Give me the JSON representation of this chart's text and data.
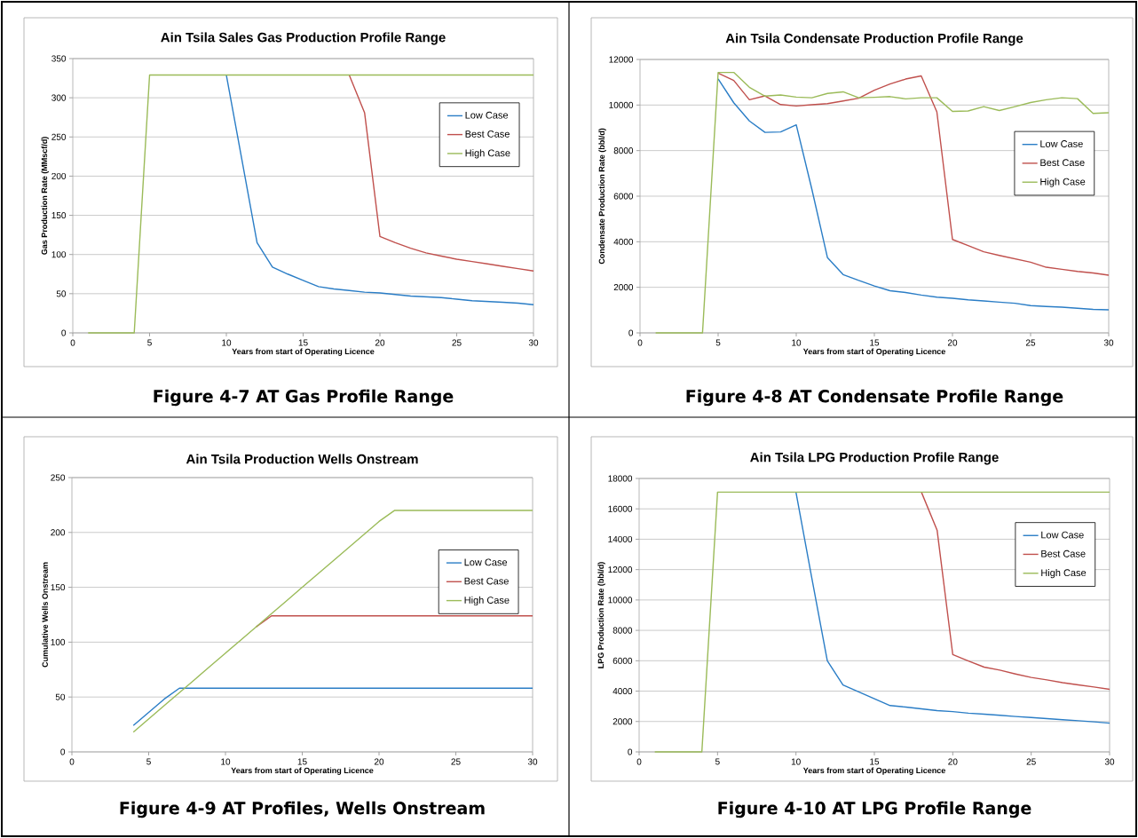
{
  "chart_data": [
    {
      "type": "line",
      "title": "Ain Tsila Sales Gas Production Profile Range",
      "xlabel": "Years from start of Operating Licence",
      "ylabel": "Gas Production Rate (MMscf/d)",
      "annotations": [
        "Figure 4-7 AT Gas Profile Range"
      ],
      "xlim": [
        0,
        30
      ],
      "ylim": [
        0,
        350
      ],
      "xticks": [
        0,
        5,
        10,
        15,
        20,
        25,
        30
      ],
      "yticks": [
        0,
        50,
        100,
        150,
        200,
        250,
        300,
        350
      ],
      "grid": "y",
      "legend": "top right",
      "x": [
        1,
        2,
        3,
        4,
        5,
        6,
        7,
        8,
        9,
        10,
        11,
        12,
        13,
        14,
        15,
        16,
        17,
        18,
        19,
        20,
        21,
        22,
        23,
        24,
        25,
        26,
        27,
        28,
        29,
        30
      ],
      "series": [
        {
          "name": "Low Case",
          "color": "#2a7dc6",
          "values": [
            null,
            null,
            null,
            null,
            null,
            null,
            null,
            null,
            null,
            329,
            222,
            115,
            84,
            75,
            67,
            59,
            56,
            54,
            52,
            51,
            49,
            47,
            46,
            45,
            43,
            41,
            40,
            39,
            38,
            36
          ]
        },
        {
          "name": "Best Case",
          "color": "#c0504d",
          "values": [
            null,
            null,
            null,
            null,
            null,
            null,
            null,
            null,
            null,
            null,
            null,
            null,
            null,
            null,
            null,
            null,
            null,
            329,
            281,
            123,
            115,
            108,
            102,
            98,
            94,
            91,
            88,
            85,
            82,
            79
          ]
        },
        {
          "name": "High Case",
          "color": "#9bbb59",
          "values": [
            0,
            0,
            0,
            0,
            329,
            329,
            329,
            329,
            329,
            329,
            329,
            329,
            329,
            329,
            329,
            329,
            329,
            329,
            329,
            329,
            329,
            329,
            329,
            329,
            329,
            329,
            329,
            329,
            329,
            329
          ]
        }
      ]
    },
    {
      "type": "line",
      "title": "Ain Tsila Condensate Production Profile Range",
      "xlabel": "Years from start of Operating Licence",
      "ylabel": "Condensate Production Rate (bbl/d)",
      "annotations": [
        "Figure 4-8 AT Condensate Profile Range"
      ],
      "xlim": [
        0,
        30
      ],
      "ylim": [
        0,
        12000
      ],
      "xticks": [
        0,
        5,
        10,
        15,
        20,
        25,
        30
      ],
      "yticks": [
        0,
        2000,
        4000,
        6000,
        8000,
        10000,
        12000
      ],
      "grid": "y",
      "legend": "right",
      "x": [
        1,
        2,
        3,
        4,
        5,
        6,
        7,
        8,
        9,
        10,
        11,
        12,
        13,
        14,
        15,
        16,
        17,
        18,
        19,
        20,
        21,
        22,
        23,
        24,
        25,
        26,
        27,
        28,
        29,
        30
      ],
      "series": [
        {
          "name": "Low Case",
          "color": "#2a7dc6",
          "values": [
            null,
            null,
            null,
            null,
            11150,
            10100,
            9300,
            8800,
            8820,
            9130,
            6300,
            3300,
            2560,
            2300,
            2060,
            1850,
            1770,
            1660,
            1570,
            1520,
            1450,
            1400,
            1350,
            1300,
            1200,
            1160,
            1130,
            1080,
            1030,
            1010
          ]
        },
        {
          "name": "Best Case",
          "color": "#c0504d",
          "values": [
            null,
            null,
            null,
            null,
            11400,
            11080,
            10230,
            10400,
            10020,
            9960,
            10010,
            10060,
            10180,
            10300,
            10650,
            10920,
            11140,
            11280,
            9700,
            4100,
            3830,
            3560,
            3400,
            3250,
            3100,
            2880,
            2790,
            2700,
            2630,
            2530
          ]
        },
        {
          "name": "High Case",
          "color": "#9bbb59",
          "values": [
            0,
            0,
            0,
            0,
            11430,
            11430,
            10780,
            10390,
            10440,
            10350,
            10320,
            10510,
            10580,
            10320,
            10340,
            10370,
            10270,
            10320,
            10320,
            9720,
            9740,
            9930,
            9760,
            9930,
            10110,
            10230,
            10320,
            10280,
            9630,
            9660
          ]
        }
      ]
    },
    {
      "type": "line",
      "title": "Ain Tsila Production Wells Onstream",
      "xlabel": "Years from start of Operating Licence",
      "ylabel": "Cumulative Wells Onstream",
      "annotations": [
        "Figure 4-9 AT Profiles, Wells Onstream"
      ],
      "xlim": [
        0,
        30
      ],
      "ylim": [
        0,
        250
      ],
      "xticks": [
        0,
        5,
        10,
        15,
        20,
        25,
        30
      ],
      "yticks": [
        0,
        50,
        100,
        150,
        200,
        250
      ],
      "grid": "y",
      "legend": "right",
      "x": [
        4,
        5,
        6,
        7,
        8,
        9,
        10,
        11,
        12,
        13,
        14,
        15,
        16,
        17,
        18,
        19,
        20,
        21,
        22,
        23,
        24,
        25,
        26,
        27,
        28,
        29,
        30
      ],
      "series": [
        {
          "name": "Low Case",
          "color": "#2a7dc6",
          "values": [
            24,
            36,
            48,
            58,
            58,
            58,
            58,
            58,
            58,
            58,
            58,
            58,
            58,
            58,
            58,
            58,
            58,
            58,
            58,
            58,
            58,
            58,
            58,
            58,
            58,
            58,
            58
          ]
        },
        {
          "name": "Best Case",
          "color": "#c0504d",
          "values": [
            null,
            null,
            null,
            null,
            null,
            null,
            null,
            null,
            114,
            124,
            124,
            124,
            124,
            124,
            124,
            124,
            124,
            124,
            124,
            124,
            124,
            124,
            124,
            124,
            124,
            124,
            124
          ]
        },
        {
          "name": "High Case",
          "color": "#9bbb59",
          "values": [
            18,
            30,
            42,
            54,
            66,
            78,
            90,
            102,
            114,
            126,
            138,
            150,
            162,
            174,
            186,
            198,
            210,
            220,
            220,
            220,
            220,
            220,
            220,
            220,
            220,
            220,
            220
          ]
        }
      ]
    },
    {
      "type": "line",
      "title": "Ain Tsila LPG Production Profile Range",
      "xlabel": "Years from start of Operating Licence",
      "ylabel": "LPG Production Rate (bbl/d)",
      "annotations": [
        "Figure 4-10 AT LPG Profile Range"
      ],
      "xlim": [
        0,
        30
      ],
      "ylim": [
        0,
        18000
      ],
      "xticks": [
        0,
        5,
        10,
        15,
        20,
        25,
        30
      ],
      "yticks": [
        0,
        2000,
        4000,
        6000,
        8000,
        10000,
        12000,
        14000,
        16000,
        18000
      ],
      "grid": "y",
      "legend": "top right",
      "x": [
        1,
        2,
        3,
        4,
        5,
        6,
        7,
        8,
        9,
        10,
        11,
        12,
        13,
        14,
        15,
        16,
        17,
        18,
        19,
        20,
        21,
        22,
        23,
        24,
        25,
        26,
        27,
        28,
        29,
        30
      ],
      "series": [
        {
          "name": "Low Case",
          "color": "#2a7dc6",
          "values": [
            null,
            null,
            null,
            null,
            null,
            null,
            null,
            null,
            null,
            17100,
            11500,
            6000,
            4400,
            3950,
            3500,
            3050,
            2950,
            2830,
            2720,
            2650,
            2550,
            2480,
            2410,
            2330,
            2260,
            2190,
            2120,
            2050,
            1980,
            1890
          ]
        },
        {
          "name": "Best Case",
          "color": "#c0504d",
          "values": [
            null,
            null,
            null,
            null,
            null,
            null,
            null,
            null,
            null,
            null,
            null,
            null,
            null,
            null,
            null,
            null,
            null,
            17100,
            14600,
            6400,
            5980,
            5580,
            5380,
            5130,
            4900,
            4740,
            4560,
            4410,
            4270,
            4120
          ]
        },
        {
          "name": "High Case",
          "color": "#9bbb59",
          "values": [
            0,
            0,
            0,
            0,
            17100,
            17100,
            17100,
            17100,
            17100,
            17100,
            17100,
            17100,
            17100,
            17100,
            17100,
            17100,
            17100,
            17100,
            17100,
            17100,
            17100,
            17100,
            17100,
            17100,
            17100,
            17100,
            17100,
            17100,
            17100,
            17100
          ]
        }
      ]
    }
  ]
}
